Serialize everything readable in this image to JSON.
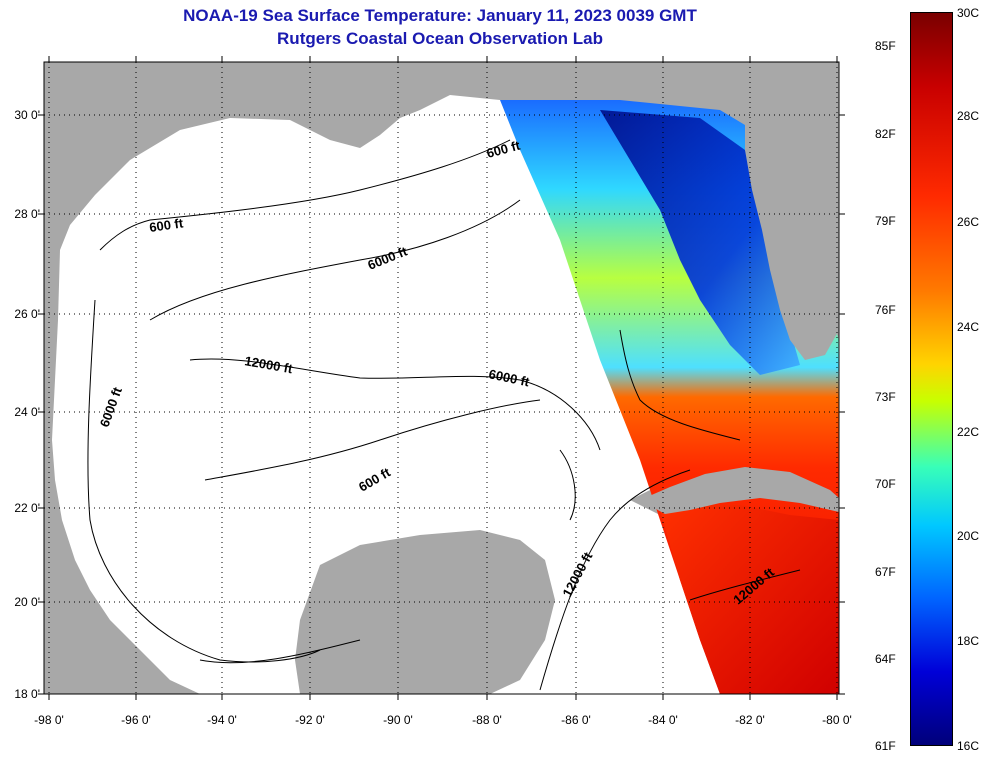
{
  "title_line1": "NOAA-19 Sea Surface Temperature:  January 11, 2023 0039 GMT",
  "title_line2": "Rutgers Coastal Ocean Observation Lab",
  "lon_labels": [
    "-98 0'",
    "-96 0'",
    "-94 0'",
    "-92 0'",
    "-90 0'",
    "-88 0'",
    "-86 0'",
    "-84 0'",
    "-82 0'",
    "-80 0'"
  ],
  "lat_labels": [
    "30 0'",
    "28 0'",
    "26 0'",
    "24 0'",
    "22 0'",
    "20 0'",
    "18 0'"
  ],
  "contour_labels": [
    "600 ft",
    "600 ft",
    "6000 ft",
    "12000 ft",
    "6000 ft",
    "6000 ft",
    "600 ft",
    "12000 ft",
    "12000 ft"
  ],
  "colorbar": {
    "fahrenheit": [
      "85F",
      "82F",
      "79F",
      "76F",
      "73F",
      "70F",
      "67F",
      "64F",
      "61F"
    ],
    "celsius": [
      "30C",
      "28C",
      "26C",
      "24C",
      "22C",
      "20C",
      "18C",
      "16C"
    ]
  },
  "colors": {
    "land": "#a8a8a8",
    "title": "#1a1ab0",
    "ocean_nodata": "#ffffff"
  }
}
